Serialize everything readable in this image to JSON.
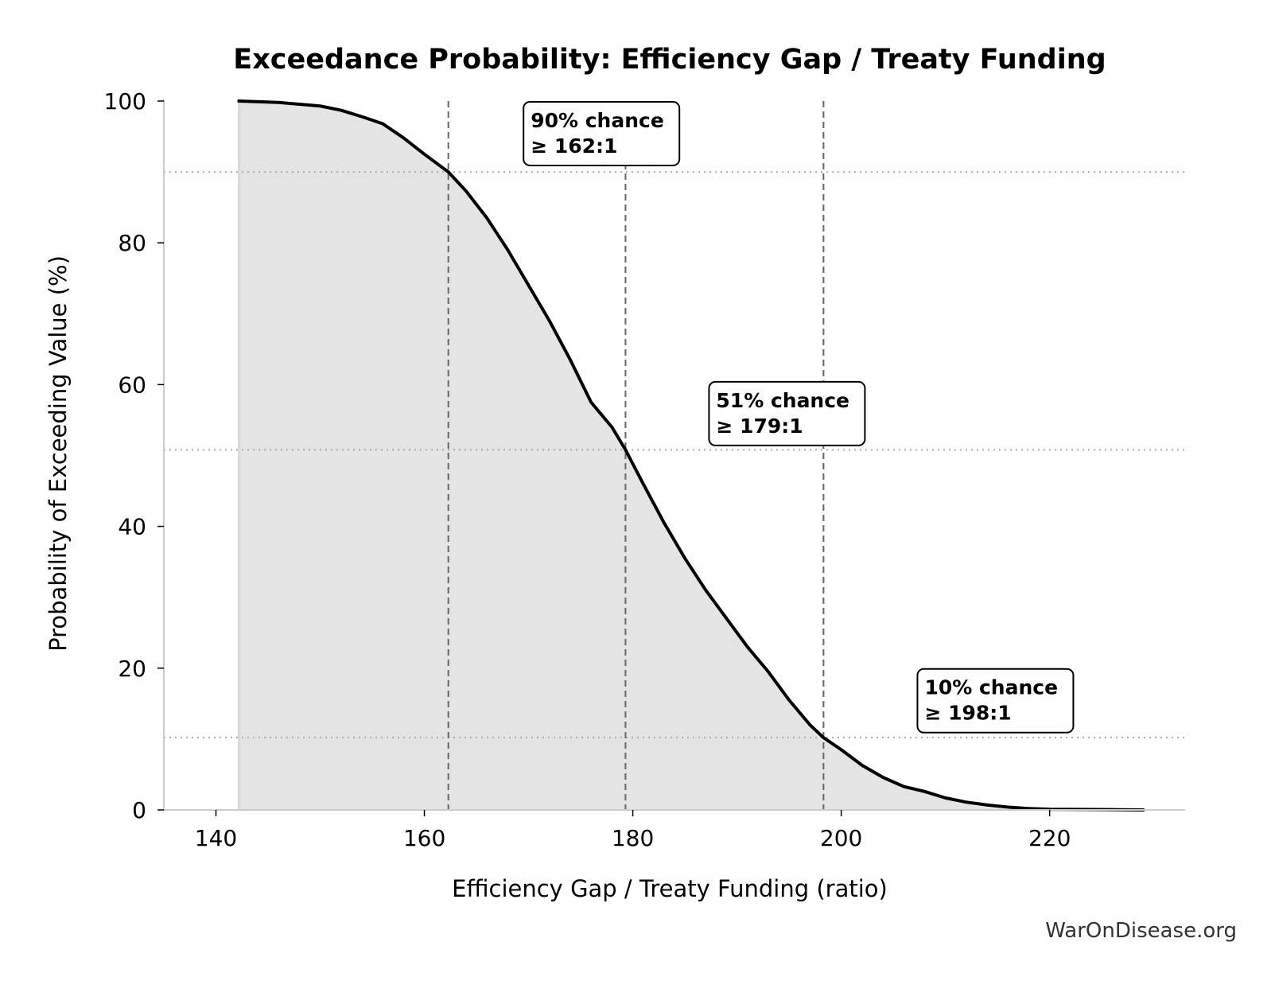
{
  "chart_data": {
    "type": "area",
    "title": "Exceedance Probability: Efficiency Gap / Treaty Funding",
    "xlabel": "Efficiency Gap / Treaty Funding (ratio)",
    "ylabel": "Probability of Exceeding Value (%)",
    "xlim": [
      135,
      233
    ],
    "ylim": [
      0,
      100
    ],
    "xticks": [
      140,
      160,
      180,
      200,
      220
    ],
    "yticks": [
      0,
      20,
      40,
      60,
      80,
      100
    ],
    "grid": false,
    "series": [
      {
        "points": [
          [
            142.2,
            100
          ],
          [
            146,
            99.8
          ],
          [
            150,
            99.3
          ],
          [
            152,
            98.7
          ],
          [
            154,
            97.8
          ],
          [
            156,
            96.8
          ],
          [
            158,
            94.8
          ],
          [
            160,
            92.5
          ],
          [
            162.3,
            90
          ],
          [
            164,
            87.3
          ],
          [
            166,
            83.5
          ],
          [
            168,
            79
          ],
          [
            170,
            74
          ],
          [
            172,
            69
          ],
          [
            174,
            63.5
          ],
          [
            176,
            57.5
          ],
          [
            178,
            54
          ],
          [
            179.3,
            50.8
          ],
          [
            181,
            46
          ],
          [
            183,
            40.5
          ],
          [
            185,
            35.5
          ],
          [
            187,
            31
          ],
          [
            189,
            27
          ],
          [
            191,
            23
          ],
          [
            193,
            19.5
          ],
          [
            195,
            15.5
          ],
          [
            197,
            12
          ],
          [
            198.3,
            10.2
          ],
          [
            200,
            8.5
          ],
          [
            202,
            6.3
          ],
          [
            204,
            4.6
          ],
          [
            206,
            3.3
          ],
          [
            208,
            2.6
          ],
          [
            210,
            1.7
          ],
          [
            212,
            1.1
          ],
          [
            214,
            0.7
          ],
          [
            216,
            0.4
          ],
          [
            218,
            0.2
          ],
          [
            220,
            0.1
          ],
          [
            225,
            0.05
          ],
          [
            229,
            0
          ]
        ]
      }
    ],
    "reference_lines": {
      "vertical": [
        162.3,
        179.3,
        198.3
      ],
      "horizontal": [
        90,
        50.8,
        10.2
      ]
    },
    "annotations": [
      {
        "line1": "90% chance",
        "line2": "≥ 162:1",
        "x": 170.2,
        "y": 97.2
      },
      {
        "line1": "51% chance",
        "line2": "≥ 179:1",
        "x": 188,
        "y": 57.7
      },
      {
        "line1": "10% chance",
        "line2": "≥ 198:1",
        "x": 208,
        "y": 17.2
      }
    ]
  },
  "watermark": "WarOnDisease.org",
  "colors": {
    "line": "#000000",
    "fill": "#e4e4e4",
    "reference": "#666666",
    "hgrid": "#aaaaaa",
    "axis": "#cccccc"
  }
}
